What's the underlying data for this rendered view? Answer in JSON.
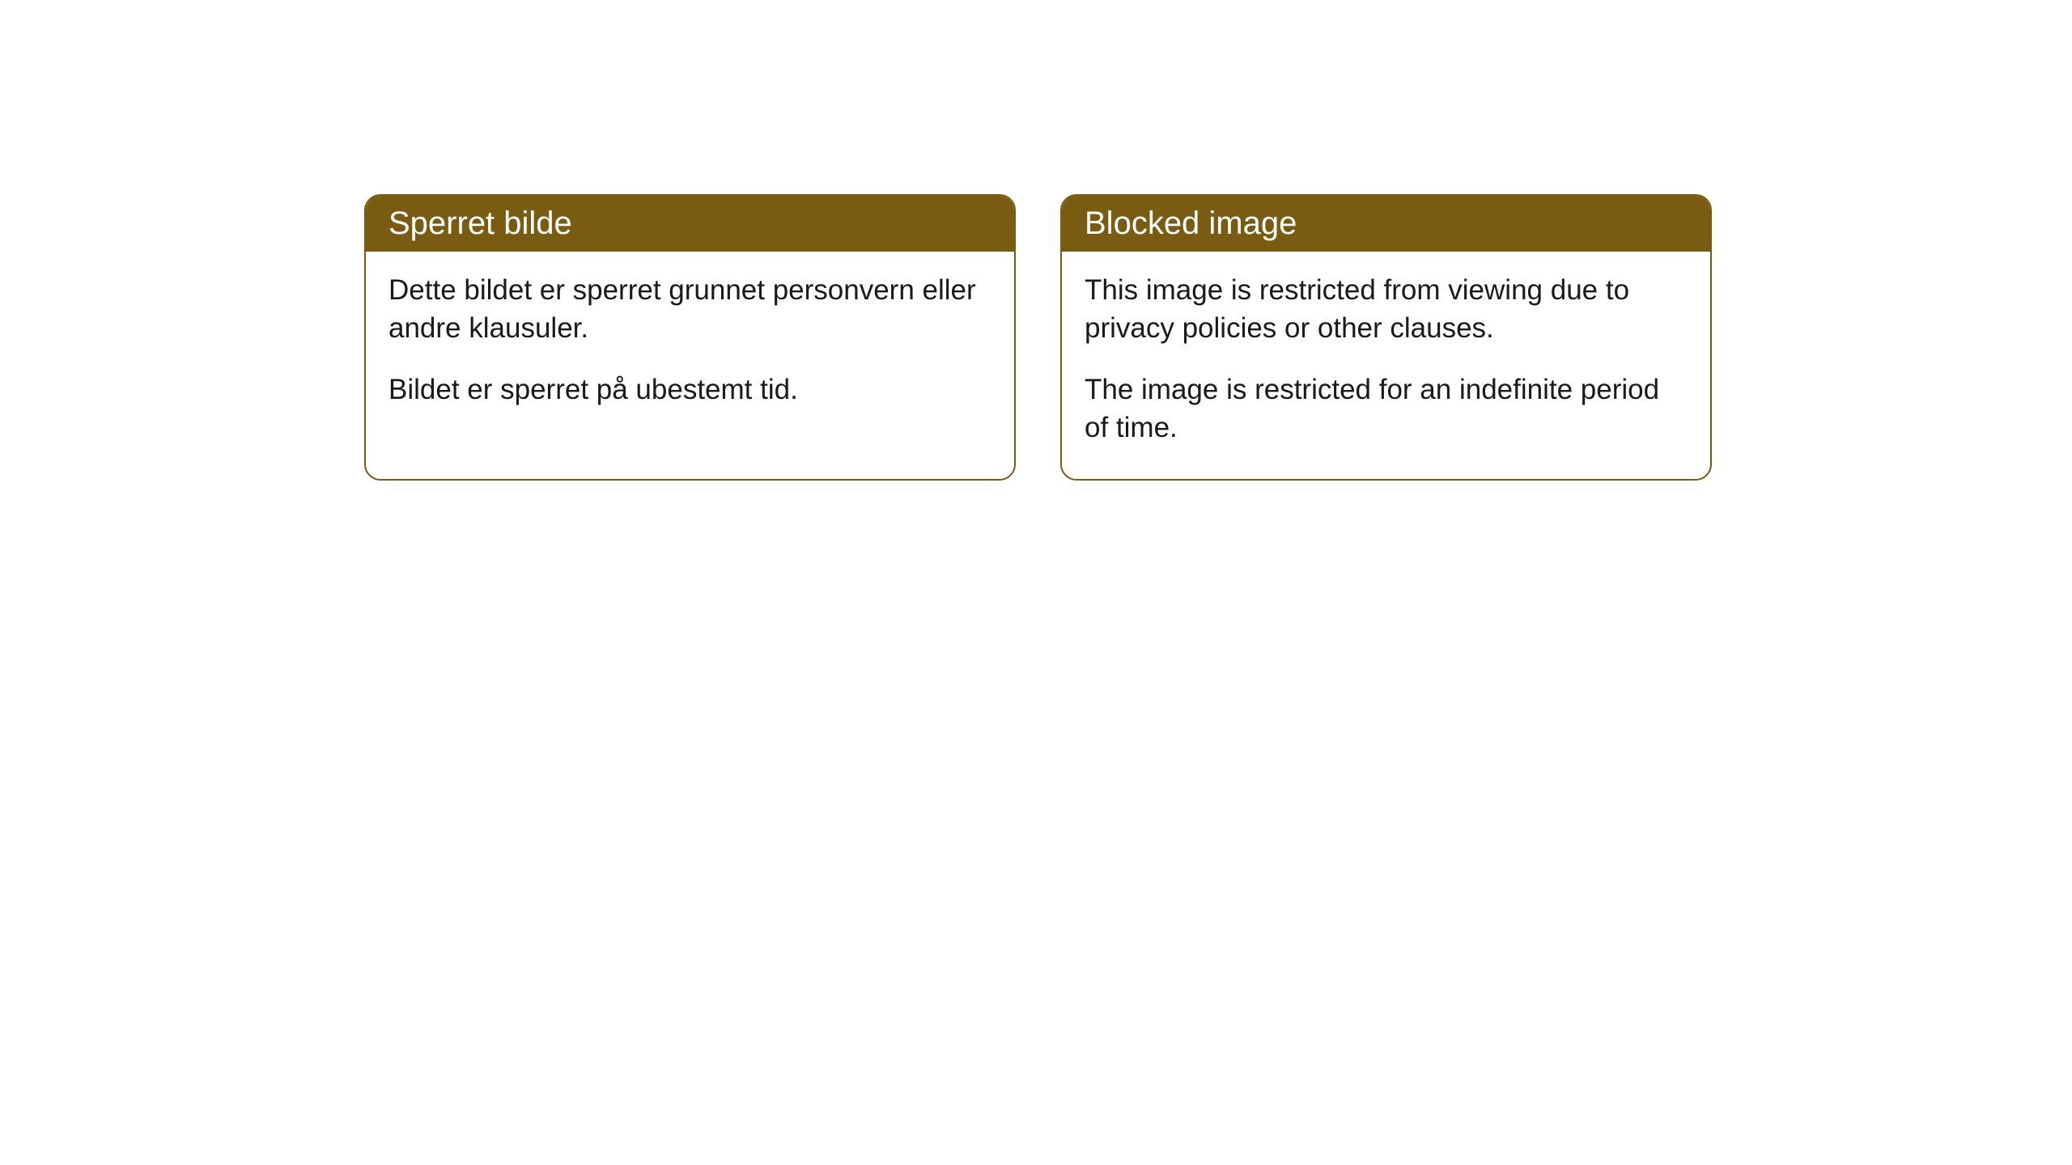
{
  "cards": [
    {
      "title": "Sperret bilde",
      "paragraph1": "Dette bildet er sperret grunnet personvern eller andre klausuler.",
      "paragraph2": "Bildet er sperret på ubestemt tid."
    },
    {
      "title": "Blocked image",
      "paragraph1": "This image is restricted from viewing due to privacy policies or other clauses.",
      "paragraph2": "The image is restricted for an indefinite period of time."
    }
  ],
  "styling": {
    "header_bg_color": "#7a5b12",
    "header_text_color": "#ffffff",
    "border_color": "#7a5b12",
    "body_text_color": "#1a1a1a",
    "page_bg_color": "#ffffff",
    "border_radius": 20,
    "title_fontsize": 40,
    "body_fontsize": 35
  }
}
